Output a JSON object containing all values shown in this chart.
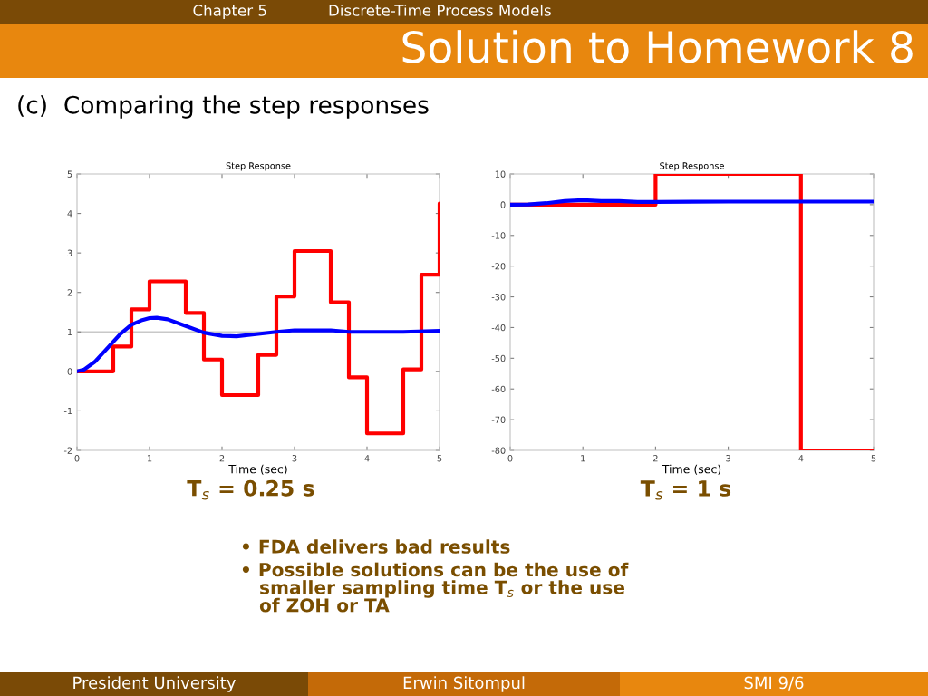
{
  "chart_data": [
    {
      "type": "line",
      "title": "Step Response",
      "xlabel": "Time (sec)",
      "xlim": [
        0,
        5
      ],
      "xticks": [
        0,
        1,
        2,
        3,
        4,
        5
      ],
      "ylim": [
        -2,
        5
      ],
      "yticks": [
        -2,
        -1,
        0,
        1,
        2,
        3,
        4,
        5
      ],
      "grid": false,
      "legend": false,
      "ref_lines": [
        {
          "axis": "y",
          "value": 1,
          "color": "#c8c8c8"
        }
      ],
      "series": [
        {
          "type": "step",
          "color": "#ff0000",
          "x": [
            0,
            0.25,
            0.5,
            0.75,
            1.0,
            1.25,
            1.5,
            1.75,
            2.0,
            2.25,
            2.5,
            2.75,
            3.0,
            3.25,
            3.5,
            3.75,
            4.0,
            4.25,
            4.5,
            4.75,
            5.0
          ],
          "values": [
            0,
            0,
            0.63,
            1.57,
            2.28,
            2.28,
            1.48,
            0.3,
            -0.6,
            -0.6,
            0.42,
            1.9,
            3.05,
            3.05,
            1.75,
            -0.15,
            -1.57,
            -1.57,
            0.05,
            2.45,
            4.25
          ]
        },
        {
          "color": "#0000ff",
          "x": [
            0,
            0.1,
            0.25,
            0.4,
            0.5,
            0.6,
            0.75,
            0.9,
            1.0,
            1.1,
            1.25,
            1.5,
            1.75,
            2.0,
            2.2,
            2.5,
            2.75,
            3.0,
            3.5,
            3.75,
            4.5,
            5.0
          ],
          "values": [
            0,
            0.05,
            0.25,
            0.55,
            0.75,
            0.95,
            1.18,
            1.3,
            1.35,
            1.36,
            1.32,
            1.15,
            0.98,
            0.9,
            0.89,
            0.95,
            1.0,
            1.04,
            1.04,
            1.0,
            1.0,
            1.03
          ]
        }
      ],
      "annotations": [
        "Chapter 5",
        "Discrete-Time Process Models",
        "Solution to Homework 8",
        "(c)  Comparing the step responses",
        "T$_{s}$ = 0.25 s",
        "• FDA delivers bad results",
        "• Possible solutions can be the use of\n   smaller sampling time T$_{s}$ or the use\n   of ZOH or TA",
        "President University",
        "Erwin Sitompul",
        "SMI 9/6"
      ]
    },
    {
      "type": "line",
      "title": "Step Response",
      "xlabel": "Time (sec)",
      "xlim": [
        0,
        5
      ],
      "xticks": [
        0,
        1,
        2,
        3,
        4,
        5
      ],
      "ylim": [
        -80,
        10
      ],
      "yticks": [
        -80,
        -70,
        -60,
        -50,
        -40,
        -30,
        -20,
        -10,
        0,
        10
      ],
      "grid": false,
      "legend": false,
      "series": [
        {
          "type": "step",
          "color": "#ff0000",
          "x": [
            0,
            1,
            2,
            3,
            4,
            5
          ],
          "values": [
            0,
            0,
            10,
            10,
            -80,
            -80
          ]
        },
        {
          "color": "#0000ff",
          "x": [
            0,
            0.25,
            0.5,
            0.75,
            1.0,
            1.25,
            1.5,
            1.75,
            2.0,
            3.0,
            5.0
          ],
          "values": [
            0,
            0.1,
            0.5,
            1.2,
            1.5,
            1.2,
            1.2,
            0.9,
            0.9,
            1.0,
            1.0
          ]
        }
      ],
      "annotations": [
        "T$_{s}$ = 1 s"
      ]
    }
  ]
}
